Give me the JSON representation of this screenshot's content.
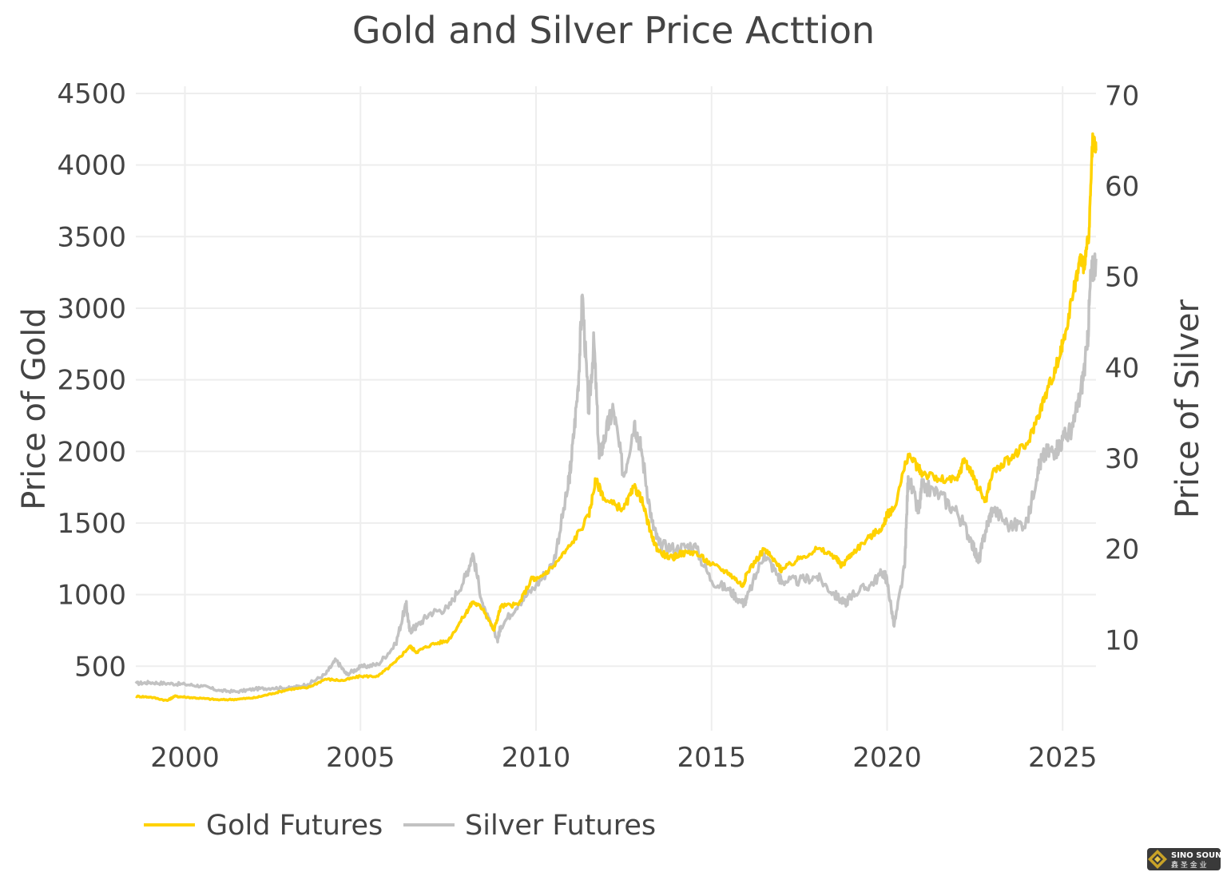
{
  "chart_data": {
    "type": "line",
    "title": "Gold and Silver Price Acttion",
    "xlabel": "",
    "ylabel": "Price of Gold",
    "y2label": "Price of Silver",
    "xlim": [
      1998.6,
      2025.95
    ],
    "ylim": [
      50,
      4550
    ],
    "y2lim": [
      0,
      71
    ],
    "x_ticks": [
      2000,
      2005,
      2010,
      2015,
      2020,
      2025
    ],
    "x_tick_labels": [
      "2000",
      "2005",
      "2010",
      "2015",
      "2020",
      "2025"
    ],
    "y_ticks": [
      500,
      1000,
      1500,
      2000,
      2500,
      3000,
      3500,
      4000,
      4500
    ],
    "y_tick_labels": [
      "500",
      "1000",
      "1500",
      "2000",
      "2500",
      "3000",
      "3500",
      "4000",
      "4500"
    ],
    "y2_ticks": [
      10,
      20,
      30,
      40,
      50,
      60,
      70
    ],
    "y2_tick_labels": [
      "10",
      "20",
      "30",
      "40",
      "50",
      "60",
      "70"
    ],
    "grid": true,
    "legend_position": "bottom-left",
    "series": [
      {
        "name": "Gold Futures",
        "axis": "left",
        "color": "#FFD200",
        "x": [
          1998.6,
          1999.0,
          1999.5,
          1999.7,
          2000.0,
          2000.5,
          2001.0,
          2001.5,
          2002.0,
          2002.5,
          2003.0,
          2003.5,
          2004.0,
          2004.5,
          2005.0,
          2005.5,
          2006.0,
          2006.4,
          2006.6,
          2007.0,
          2007.5,
          2008.0,
          2008.2,
          2008.5,
          2008.8,
          2009.0,
          2009.5,
          2009.9,
          2010.0,
          2010.5,
          2011.0,
          2011.5,
          2011.7,
          2012.0,
          2012.5,
          2012.8,
          2013.0,
          2013.3,
          2013.5,
          2013.9,
          2014.0,
          2014.5,
          2015.0,
          2015.5,
          2015.9,
          2016.0,
          2016.5,
          2016.9,
          2017.0,
          2017.5,
          2018.0,
          2018.5,
          2018.7,
          2019.0,
          2019.5,
          2019.9,
          2020.0,
          2020.2,
          2020.6,
          2020.9,
          2021.0,
          2021.5,
          2022.0,
          2022.2,
          2022.5,
          2022.8,
          2023.0,
          2023.5,
          2024.0,
          2024.3,
          2024.6,
          2024.9,
          2025.0,
          2025.3,
          2025.5,
          2025.6,
          2025.75,
          2025.85,
          2025.95
        ],
        "values": [
          290,
          285,
          260,
          290,
          285,
          275,
          265,
          270,
          280,
          310,
          340,
          350,
          410,
          400,
          430,
          430,
          530,
          640,
          600,
          650,
          680,
          870,
          950,
          900,
          750,
          920,
          930,
          1120,
          1100,
          1200,
          1350,
          1550,
          1800,
          1650,
          1600,
          1750,
          1670,
          1400,
          1300,
          1250,
          1280,
          1300,
          1210,
          1150,
          1060,
          1150,
          1320,
          1200,
          1170,
          1250,
          1320,
          1270,
          1200,
          1290,
          1400,
          1480,
          1560,
          1600,
          1980,
          1880,
          1850,
          1800,
          1800,
          1950,
          1800,
          1650,
          1850,
          1950,
          2050,
          2250,
          2450,
          2650,
          2750,
          3100,
          3350,
          3300,
          3500,
          4150,
          4100
        ]
      },
      {
        "name": "Silver Futures",
        "axis": "right",
        "color": "#C2C2C2",
        "x": [
          1998.6,
          1999.0,
          1999.5,
          2000.0,
          2000.5,
          2001.0,
          2001.5,
          2002.0,
          2002.5,
          2003.0,
          2003.5,
          2004.0,
          2004.3,
          2004.6,
          2005.0,
          2005.5,
          2006.0,
          2006.3,
          2006.4,
          2006.6,
          2007.0,
          2007.5,
          2008.0,
          2008.2,
          2008.5,
          2008.9,
          2009.0,
          2009.5,
          2010.0,
          2010.5,
          2010.9,
          2011.0,
          2011.2,
          2011.32,
          2011.5,
          2011.65,
          2011.8,
          2012.0,
          2012.2,
          2012.5,
          2012.8,
          2013.0,
          2013.3,
          2013.5,
          2014.0,
          2014.5,
          2015.0,
          2015.5,
          2015.9,
          2016.0,
          2016.5,
          2016.9,
          2017.0,
          2017.5,
          2018.0,
          2018.5,
          2018.8,
          2019.0,
          2019.5,
          2019.9,
          2020.0,
          2020.2,
          2020.5,
          2020.6,
          2020.9,
          2021.0,
          2021.5,
          2022.0,
          2022.4,
          2022.6,
          2022.8,
          2023.0,
          2023.5,
          2024.0,
          2024.3,
          2024.5,
          2024.8,
          2025.0,
          2025.3,
          2025.5,
          2025.7,
          2025.8,
          2025.95
        ],
        "values": [
          5.2,
          5.3,
          5.2,
          5.1,
          4.9,
          4.4,
          4.3,
          4.6,
          4.7,
          4.7,
          5.1,
          6.2,
          7.8,
          6.2,
          7.0,
          7.3,
          9.5,
          14.0,
          11.0,
          11.5,
          13.0,
          13.5,
          17.0,
          19.5,
          13.5,
          10.0,
          11.5,
          14.0,
          16.0,
          18.5,
          26.5,
          29.5,
          38.0,
          48.0,
          35.0,
          43.0,
          30.0,
          33.0,
          35.5,
          28.0,
          34.0,
          31.0,
          23.0,
          20.5,
          20.0,
          20.5,
          16.5,
          15.5,
          14.0,
          14.5,
          19.5,
          17.0,
          16.5,
          16.5,
          17.0,
          15.0,
          14.0,
          15.0,
          16.0,
          17.5,
          16.5,
          11.5,
          18.0,
          28.0,
          24.0,
          27.0,
          26.0,
          24.0,
          21.0,
          18.5,
          22.0,
          24.5,
          22.5,
          23.0,
          29.0,
          30.5,
          31.0,
          32.0,
          33.5,
          37.0,
          42.0,
          50.0,
          52.0
        ]
      }
    ]
  },
  "watermark": {
    "top_text": "SINO SOUND",
    "bottom_text": "鑫 圣 金 业",
    "icon": "diamond-logo-icon"
  },
  "colors": {
    "gold": "#FFD200",
    "silver": "#C2C2C2",
    "grid": "#eeeeee",
    "text": "#444444"
  }
}
